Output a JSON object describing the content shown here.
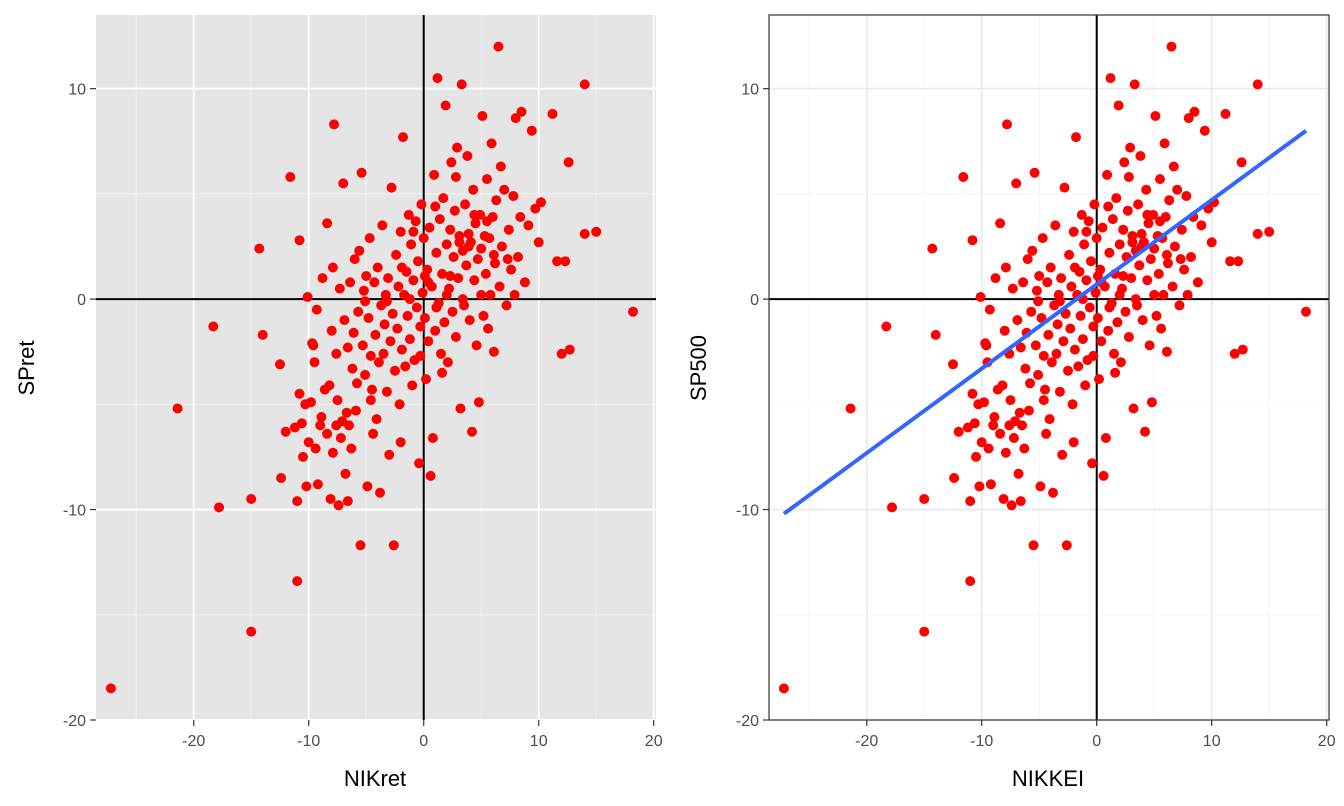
{
  "colors": {
    "point": "#ff0000",
    "fit_line": "#3366ff",
    "panel_bg_left": "#e5e5e5",
    "panel_bg_right": "#ffffff",
    "ref_line": "#000000"
  },
  "chart_data": [
    {
      "type": "scatter",
      "theme": "grey",
      "xlabel": "NIKret",
      "ylabel": "SPret",
      "xlim": [
        -28.5,
        20.2
      ],
      "ylim": [
        -20,
        13.5
      ],
      "xticks": [
        -20,
        -10,
        0,
        10,
        20
      ],
      "yticks": [
        -20,
        -10,
        0,
        10
      ],
      "reference_lines": {
        "x": 0,
        "y": 0
      },
      "grid": true
    },
    {
      "type": "scatter",
      "theme": "bw",
      "xlabel": "NIKKEI",
      "ylabel": "SP500",
      "xlim": [
        -28.5,
        20.2
      ],
      "ylim": [
        -20,
        13.5
      ],
      "xticks": [
        -20,
        -10,
        0,
        10,
        20
      ],
      "yticks": [
        -20,
        -10,
        0,
        10
      ],
      "reference_lines": {
        "x": 0,
        "y": 0
      },
      "grid": true,
      "fit_line": {
        "x": [
          -27.2,
          18.2
        ],
        "y": [
          -10.2,
          8.0
        ]
      }
    }
  ],
  "points": [
    [
      -27.2,
      -18.5
    ],
    [
      -21.4,
      -5.2
    ],
    [
      -18.3,
      -1.3
    ],
    [
      -17.8,
      -9.9
    ],
    [
      -15.0,
      -15.8
    ],
    [
      -15.0,
      -9.5
    ],
    [
      -14.3,
      2.4
    ],
    [
      -14.0,
      -1.7
    ],
    [
      -12.5,
      -3.1
    ],
    [
      -12.4,
      -8.5
    ],
    [
      -12.0,
      -6.3
    ],
    [
      -11.6,
      5.8
    ],
    [
      -11.2,
      -6.1
    ],
    [
      -11.0,
      -13.4
    ],
    [
      -11.0,
      -9.6
    ],
    [
      -10.8,
      -4.5
    ],
    [
      -10.8,
      2.8
    ],
    [
      -10.6,
      -5.9
    ],
    [
      -10.5,
      -7.5
    ],
    [
      -10.3,
      -5.0
    ],
    [
      -10.2,
      -8.9
    ],
    [
      -10.1,
      0.1
    ],
    [
      -10.0,
      -6.8
    ],
    [
      -9.8,
      -4.9
    ],
    [
      -9.6,
      -2.2
    ],
    [
      -9.5,
      -3.0
    ],
    [
      -9.4,
      -7.1
    ],
    [
      -9.3,
      -0.5
    ],
    [
      -9.2,
      -8.8
    ],
    [
      -9.0,
      -6.0
    ],
    [
      -8.8,
      1.0
    ],
    [
      -8.6,
      -4.3
    ],
    [
      -8.4,
      3.6
    ],
    [
      -8.4,
      -6.4
    ],
    [
      -8.2,
      -4.1
    ],
    [
      -8.1,
      -9.5
    ],
    [
      -8.0,
      -1.5
    ],
    [
      -7.9,
      -7.3
    ],
    [
      -7.9,
      1.5
    ],
    [
      -7.8,
      8.3
    ],
    [
      -7.6,
      -2.6
    ],
    [
      -7.6,
      -6.0
    ],
    [
      -7.5,
      -4.8
    ],
    [
      -7.4,
      -9.8
    ],
    [
      -7.3,
      0.5
    ],
    [
      -7.2,
      -6.6
    ],
    [
      -7.1,
      -5.8
    ],
    [
      -7.0,
      5.5
    ],
    [
      -6.9,
      -1.0
    ],
    [
      -6.8,
      -8.3
    ],
    [
      -6.7,
      -5.4
    ],
    [
      -6.6,
      -2.3
    ],
    [
      -6.6,
      -9.6
    ],
    [
      -6.5,
      -6.0
    ],
    [
      -6.4,
      0.8
    ],
    [
      -6.2,
      -3.3
    ],
    [
      -6.1,
      -1.6
    ],
    [
      -6.0,
      1.9
    ],
    [
      -5.9,
      -5.3
    ],
    [
      -5.8,
      -4.0
    ],
    [
      -5.7,
      -0.6
    ],
    [
      -5.6,
      2.3
    ],
    [
      -5.5,
      -11.7
    ],
    [
      -5.4,
      6.0
    ],
    [
      -5.3,
      -2.2
    ],
    [
      -5.2,
      0.4
    ],
    [
      -5.1,
      -3.6
    ],
    [
      -5.0,
      1.1
    ],
    [
      -4.9,
      -8.9
    ],
    [
      -4.8,
      -0.9
    ],
    [
      -4.7,
      2.9
    ],
    [
      -4.6,
      -2.7
    ],
    [
      -4.5,
      -4.3
    ],
    [
      -4.4,
      -6.4
    ],
    [
      -4.3,
      0.8
    ],
    [
      -4.2,
      -1.7
    ],
    [
      -4.1,
      -5.7
    ],
    [
      -4.0,
      1.5
    ],
    [
      -3.9,
      -3.0
    ],
    [
      -3.8,
      -9.2
    ],
    [
      -3.7,
      -0.3
    ],
    [
      -3.6,
      3.5
    ],
    [
      -3.5,
      -2.6
    ],
    [
      -3.4,
      -1.2
    ],
    [
      -3.3,
      0.2
    ],
    [
      -3.2,
      -4.4
    ],
    [
      -3.1,
      1.0
    ],
    [
      -3.0,
      -7.4
    ],
    [
      -2.9,
      -2.0
    ],
    [
      -2.8,
      5.3
    ],
    [
      -2.7,
      -0.7
    ],
    [
      -2.6,
      -11.7
    ],
    [
      -2.5,
      -3.4
    ],
    [
      -2.4,
      2.1
    ],
    [
      -2.3,
      -1.4
    ],
    [
      -2.2,
      0.6
    ],
    [
      -2.1,
      -5.0
    ],
    [
      -2.0,
      3.2
    ],
    [
      -1.9,
      -2.4
    ],
    [
      -1.8,
      7.7
    ],
    [
      -1.7,
      0.2
    ],
    [
      -1.6,
      -3.2
    ],
    [
      -1.5,
      1.3
    ],
    [
      -1.4,
      -0.8
    ],
    [
      -1.3,
      4.0
    ],
    [
      -1.2,
      -1.9
    ],
    [
      -1.1,
      2.6
    ],
    [
      -1.0,
      -4.1
    ],
    [
      -0.9,
      0.9
    ],
    [
      -0.8,
      -2.9
    ],
    [
      -0.7,
      3.7
    ],
    [
      -0.6,
      -0.4
    ],
    [
      -0.5,
      1.8
    ],
    [
      -0.4,
      -7.8
    ],
    [
      -0.3,
      -1.3
    ],
    [
      -0.2,
      4.5
    ],
    [
      -0.1,
      0.3
    ],
    [
      0.0,
      2.9
    ],
    [
      0.1,
      -0.9
    ],
    [
      0.2,
      -3.8
    ],
    [
      0.3,
      1.4
    ],
    [
      0.4,
      -2.0
    ],
    [
      0.5,
      3.4
    ],
    [
      0.6,
      -8.4
    ],
    [
      0.7,
      0.6
    ],
    [
      0.8,
      -6.6
    ],
    [
      0.9,
      5.9
    ],
    [
      1.0,
      -1.5
    ],
    [
      1.1,
      2.2
    ],
    [
      1.2,
      10.5
    ],
    [
      1.3,
      -0.2
    ],
    [
      1.4,
      3.8
    ],
    [
      1.5,
      -2.6
    ],
    [
      1.6,
      1.2
    ],
    [
      1.7,
      4.8
    ],
    [
      1.8,
      -1.1
    ],
    [
      1.9,
      9.2
    ],
    [
      2.0,
      2.6
    ],
    [
      2.1,
      -3.0
    ],
    [
      2.2,
      0.5
    ],
    [
      2.3,
      3.3
    ],
    [
      2.4,
      6.5
    ],
    [
      2.5,
      -0.6
    ],
    [
      2.6,
      2.0
    ],
    [
      2.7,
      4.2
    ],
    [
      2.8,
      -1.8
    ],
    [
      2.9,
      7.2
    ],
    [
      3.0,
      1.0
    ],
    [
      3.1,
      3.0
    ],
    [
      3.2,
      -5.2
    ],
    [
      3.3,
      10.2
    ],
    [
      3.4,
      2.3
    ],
    [
      3.5,
      -0.3
    ],
    [
      3.6,
      4.5
    ],
    [
      3.7,
      1.6
    ],
    [
      3.8,
      6.8
    ],
    [
      3.9,
      3.1
    ],
    [
      4.0,
      -1.0
    ],
    [
      4.1,
      2.7
    ],
    [
      4.2,
      -6.3
    ],
    [
      4.3,
      5.2
    ],
    [
      4.4,
      0.9
    ],
    [
      4.5,
      3.6
    ],
    [
      4.6,
      -2.2
    ],
    [
      4.7,
      1.9
    ],
    [
      4.8,
      -4.9
    ],
    [
      4.9,
      4.0
    ],
    [
      5.0,
      2.4
    ],
    [
      5.1,
      8.7
    ],
    [
      5.2,
      -0.8
    ],
    [
      5.3,
      3.0
    ],
    [
      5.4,
      1.2
    ],
    [
      5.5,
      5.7
    ],
    [
      5.6,
      -1.4
    ],
    [
      5.7,
      2.9
    ],
    [
      5.8,
      0.2
    ],
    [
      5.9,
      7.4
    ],
    [
      6.0,
      3.9
    ],
    [
      6.1,
      -2.5
    ],
    [
      6.2,
      1.7
    ],
    [
      6.3,
      4.7
    ],
    [
      6.5,
      12.0
    ],
    [
      6.6,
      0.6
    ],
    [
      6.8,
      2.5
    ],
    [
      7.0,
      5.2
    ],
    [
      7.2,
      -0.3
    ],
    [
      7.4,
      3.3
    ],
    [
      7.6,
      1.4
    ],
    [
      7.8,
      4.9
    ],
    [
      8.0,
      8.6
    ],
    [
      8.2,
      2.0
    ],
    [
      8.5,
      8.9
    ],
    [
      8.8,
      0.8
    ],
    [
      9.1,
      3.5
    ],
    [
      9.4,
      8.0
    ],
    [
      9.7,
      4.3
    ],
    [
      10.0,
      2.7
    ],
    [
      10.2,
      4.6
    ],
    [
      11.2,
      8.8
    ],
    [
      11.6,
      1.8
    ],
    [
      12.0,
      -2.6
    ],
    [
      12.3,
      1.8
    ],
    [
      12.6,
      6.5
    ],
    [
      12.7,
      -2.4
    ],
    [
      14.0,
      10.2
    ],
    [
      14.0,
      3.1
    ],
    [
      15.0,
      3.2
    ],
    [
      18.2,
      -0.6
    ],
    [
      -9.7,
      -2.1
    ],
    [
      -8.9,
      -5.6
    ],
    [
      -6.3,
      -7.1
    ],
    [
      -5.1,
      -0.1
    ],
    [
      -4.6,
      -4.8
    ],
    [
      -3.2,
      -0.1
    ],
    [
      -2.0,
      -6.8
    ],
    [
      -1.2,
      0.0
    ],
    [
      -0.3,
      -2.7
    ],
    [
      0.4,
      0.8
    ],
    [
      1.1,
      -0.4
    ],
    [
      1.6,
      -3.5
    ],
    [
      2.3,
      1.1
    ],
    [
      2.8,
      5.8
    ],
    [
      3.4,
      0.0
    ],
    [
      3.9,
      2.5
    ],
    [
      4.4,
      4.0
    ],
    [
      5.0,
      0.2
    ],
    [
      5.5,
      3.7
    ],
    [
      6.1,
      2.1
    ],
    [
      6.7,
      6.3
    ],
    [
      7.3,
      1.9
    ],
    [
      7.9,
      0.2
    ],
    [
      8.4,
      3.9
    ],
    [
      -1.9,
      1.5
    ],
    [
      -0.9,
      3.2
    ],
    [
      0.1,
      1.1
    ],
    [
      1.0,
      4.4
    ],
    [
      2.0,
      0.2
    ],
    [
      3.1,
      2.7
    ]
  ]
}
